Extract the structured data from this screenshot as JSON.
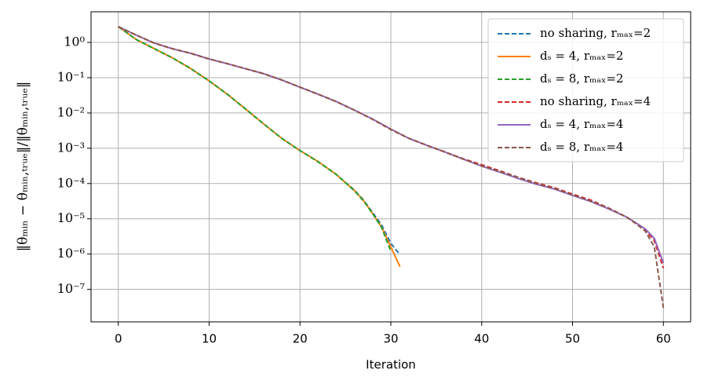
{
  "chart_data": {
    "type": "line",
    "yscale": "log",
    "grid": true,
    "legend": "upper right",
    "xlabel": "Iteration",
    "ylabel": "‖θₘᵢₙ − θₘᵢₙ,ₜᵣᵤₑ‖/‖θₘᵢₙ,ₜᵣᵤₑ‖",
    "xlim": [
      -3,
      63
    ],
    "xticks": [
      0,
      10,
      20,
      30,
      40,
      50,
      60
    ],
    "ylim": [
      1.2e-08,
      7.4
    ],
    "yticks": [
      {
        "value": 1e-07,
        "label": "10⁻⁷"
      },
      {
        "value": 1e-06,
        "label": "10⁻⁶"
      },
      {
        "value": 1e-05,
        "label": "10⁻⁵"
      },
      {
        "value": 0.0001,
        "label": "10⁻⁴"
      },
      {
        "value": 0.001,
        "label": "10⁻³"
      },
      {
        "value": 0.01,
        "label": "10⁻²"
      },
      {
        "value": 0.1,
        "label": "10⁻¹"
      },
      {
        "value": 1,
        "label": "10⁰"
      }
    ],
    "series": [
      {
        "name": "no sharing, rₘₐₓ=2",
        "color": "#1f77b4",
        "linestyle": "dashed",
        "x": [
          0,
          2,
          4,
          6,
          8,
          10,
          12,
          14,
          16,
          18,
          20,
          22,
          24,
          26,
          27,
          28,
          29,
          30,
          31
        ],
        "values": [
          2.8,
          1.2,
          0.66,
          0.36,
          0.18,
          0.081,
          0.034,
          0.013,
          0.0049,
          0.0019,
          0.00086,
          0.00042,
          0.00018,
          6.5e-05,
          3.4e-05,
          1.5e-05,
          6.6e-06,
          2e-06,
          9.7e-07
        ]
      },
      {
        "name": "dₛ = 4, rₘₐₓ=2",
        "color": "#ff7f0e",
        "linestyle": "solid",
        "x": [
          0,
          2,
          4,
          6,
          8,
          10,
          12,
          14,
          16,
          18,
          20,
          22,
          24,
          26,
          27,
          28,
          29,
          30,
          31
        ],
        "values": [
          2.8,
          1.2,
          0.66,
          0.36,
          0.18,
          0.081,
          0.034,
          0.013,
          0.0049,
          0.0019,
          0.00086,
          0.00042,
          0.00018,
          6.3e-05,
          3.3e-05,
          1.4e-05,
          5.7e-06,
          1.6e-06,
          4.4e-07
        ]
      },
      {
        "name": "dₛ = 8, rₘₐₓ=2",
        "color": "#2ca02c",
        "linestyle": "dashed",
        "x": [
          0,
          2,
          4,
          6,
          8,
          10,
          12,
          14,
          16,
          18,
          20,
          22,
          24,
          26,
          27,
          28,
          29,
          30
        ],
        "values": [
          2.8,
          1.2,
          0.66,
          0.36,
          0.18,
          0.081,
          0.034,
          0.013,
          0.0049,
          0.0019,
          0.00086,
          0.00041,
          0.00018,
          6.2e-05,
          3.2e-05,
          1.4e-05,
          5.5e-06,
          1.2e-06
        ]
      },
      {
        "name": "no sharing, rₘₐₓ=4",
        "color": "#d62728",
        "linestyle": "dashed",
        "x": [
          0,
          2,
          4,
          6,
          8,
          10,
          12,
          14,
          16,
          18,
          20,
          22,
          24,
          26,
          28,
          30,
          32,
          34,
          36,
          38,
          40,
          42,
          44,
          46,
          48,
          50,
          52,
          54,
          56,
          57,
          58,
          59,
          60
        ],
        "values": [
          2.8,
          1.6,
          0.95,
          0.66,
          0.49,
          0.34,
          0.25,
          0.18,
          0.13,
          0.086,
          0.054,
          0.034,
          0.021,
          0.012,
          0.0066,
          0.0034,
          0.0019,
          0.0012,
          0.00078,
          0.0005,
          0.00034,
          0.00023,
          0.00015,
          0.000105,
          7.6e-05,
          5e-05,
          3.4e-05,
          2e-05,
          1.1e-05,
          7.4e-06,
          4.8e-06,
          2.4e-06,
          4e-07
        ]
      },
      {
        "name": "dₛ = 4, rₘₐₓ=4",
        "color": "#9467bd",
        "linestyle": "solid",
        "x": [
          0,
          2,
          4,
          6,
          8,
          10,
          12,
          14,
          16,
          18,
          20,
          22,
          24,
          26,
          28,
          30,
          32,
          34,
          36,
          38,
          40,
          42,
          44,
          46,
          48,
          50,
          52,
          54,
          56,
          57,
          58,
          59,
          60
        ],
        "values": [
          2.8,
          1.6,
          0.95,
          0.66,
          0.49,
          0.34,
          0.25,
          0.18,
          0.13,
          0.086,
          0.054,
          0.034,
          0.021,
          0.012,
          0.0067,
          0.0035,
          0.0019,
          0.0012,
          0.00077,
          0.00049,
          0.00031,
          0.00021,
          0.00014,
          9.6e-05,
          7e-05,
          4.6e-05,
          3.1e-05,
          1.9e-05,
          1.1e-05,
          7.6e-06,
          5.2e-06,
          2.8e-06,
          5.6e-07
        ]
      },
      {
        "name": "dₛ = 8, rₘₐₓ=4",
        "color": "#8c564b",
        "linestyle": "dashed",
        "x": [
          0,
          2,
          4,
          6,
          8,
          10,
          12,
          14,
          16,
          18,
          20,
          22,
          24,
          26,
          28,
          30,
          32,
          34,
          36,
          38,
          40,
          42,
          44,
          46,
          48,
          50,
          52,
          54,
          56,
          57,
          58,
          59,
          60
        ],
        "values": [
          2.8,
          1.6,
          0.95,
          0.66,
          0.49,
          0.34,
          0.25,
          0.18,
          0.13,
          0.086,
          0.054,
          0.034,
          0.021,
          0.012,
          0.0066,
          0.0034,
          0.0019,
          0.0012,
          0.00077,
          0.00049,
          0.00032,
          0.00022,
          0.00015,
          0.0001,
          7.3e-05,
          4.8e-05,
          3.2e-05,
          2e-05,
          1.1e-05,
          7.2e-06,
          4.5e-06,
          1.6e-06,
          3e-08
        ]
      }
    ]
  }
}
